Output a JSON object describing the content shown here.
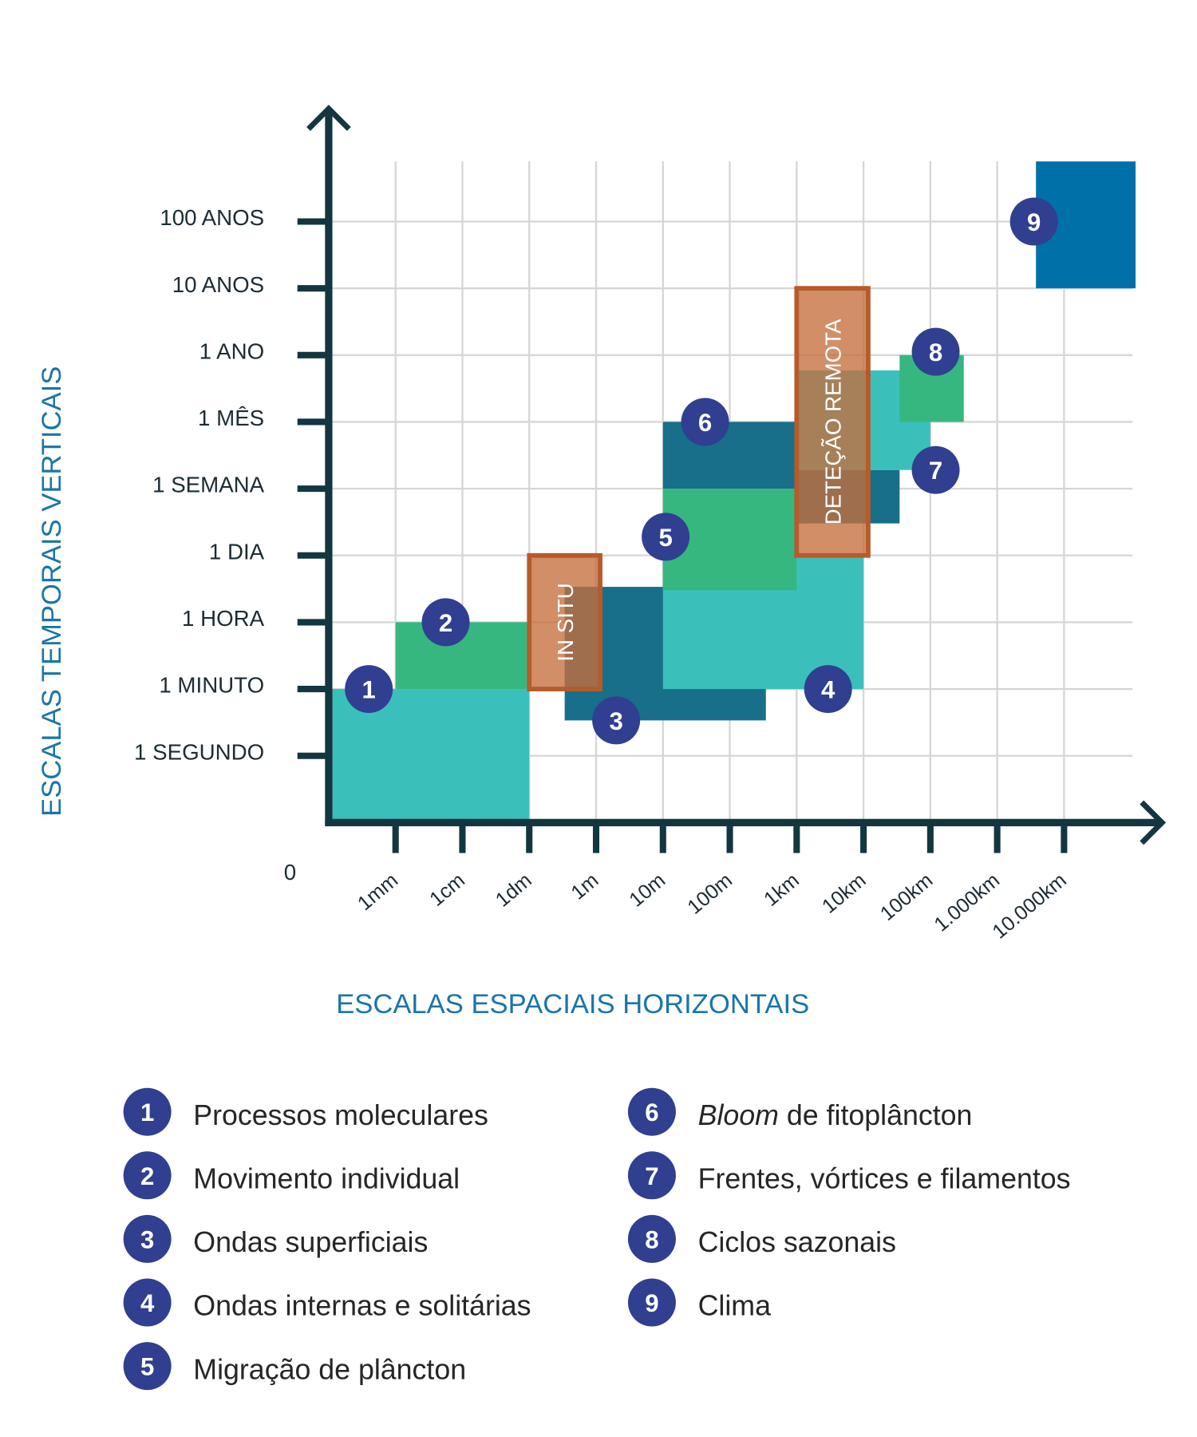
{
  "chart_data": {
    "type": "area-blocks",
    "xlabel": "ESCALAS ESPACIAIS HORIZONTAIS",
    "ylabel": "ESCALAS TEMPORAIS VERTICAIS",
    "x_scale": "log10 meters",
    "origin_label": "0",
    "x_ticks": [
      {
        "v": -3,
        "label": "1mm"
      },
      {
        "v": -2,
        "label": "1cm"
      },
      {
        "v": -1,
        "label": "1dm"
      },
      {
        "v": 0,
        "label": "1m"
      },
      {
        "v": 1,
        "label": "10m"
      },
      {
        "v": 2,
        "label": "100m"
      },
      {
        "v": 3,
        "label": "1km"
      },
      {
        "v": 4,
        "label": "10km"
      },
      {
        "v": 5,
        "label": "100km"
      },
      {
        "v": 6,
        "label": "1.000km"
      },
      {
        "v": 7,
        "label": "10.000km"
      }
    ],
    "y_ticks": [
      {
        "v": 0,
        "label": "1 SEGUNDO"
      },
      {
        "v": 1,
        "label": "1 MINUTO"
      },
      {
        "v": 2,
        "label": "1 HORA"
      },
      {
        "v": 3,
        "label": "1 DIA"
      },
      {
        "v": 4,
        "label": "1 SEMANA"
      },
      {
        "v": 5,
        "label": "1 MÊS"
      },
      {
        "v": 6,
        "label": "1 ANO"
      },
      {
        "v": 7,
        "label": "10 ANOS"
      },
      {
        "v": 8,
        "label": "100 ANOS"
      }
    ],
    "xlim": [
      -4,
      8
    ],
    "ylim": [
      -1,
      8.9
    ],
    "grid": true,
    "colors": {
      "teal": "#3bbfbb",
      "green": "#35b77f",
      "dark": "#176f8a",
      "blue": "#0070a8",
      "marker": "#303f8f",
      "method": "#b85a2a",
      "axis": "#143640"
    },
    "regions": [
      {
        "id": 3,
        "x": [
          -0.47,
          2.54
        ],
        "y": [
          0.53,
          2.53
        ],
        "color": "dark"
      },
      {
        "id": 1,
        "x": [
          -4,
          -1
        ],
        "y": [
          -1,
          1
        ],
        "color": "teal"
      },
      {
        "id": 2,
        "x": [
          -3,
          -1
        ],
        "y": [
          1,
          2
        ],
        "color": "green"
      },
      {
        "id": 4,
        "x": [
          1,
          4
        ],
        "y": [
          1,
          3
        ],
        "color": "teal"
      },
      {
        "id": 5,
        "x": [
          1,
          3
        ],
        "y": [
          2.48,
          4
        ],
        "color": "green"
      },
      {
        "id": 6,
        "x": [
          1,
          3
        ],
        "y": [
          4,
          5
        ],
        "color": "dark"
      },
      {
        "id": 6,
        "x": [
          3,
          4.54
        ],
        "y": [
          3.48,
          4.28
        ],
        "color": "dark"
      },
      {
        "id": 7,
        "x": [
          3,
          5
        ],
        "y": [
          4.28,
          5.77
        ],
        "color": "teal"
      },
      {
        "id": 8,
        "x": [
          4.54,
          5.5
        ],
        "y": [
          5,
          6
        ],
        "color": "green"
      },
      {
        "id": 9,
        "x": [
          6.58,
          8.07
        ],
        "y": [
          7,
          8.9
        ],
        "color": "blue"
      }
    ],
    "methods": [
      {
        "label": "IN SITU",
        "x": [
          -1,
          0.06
        ],
        "y": [
          1,
          3
        ]
      },
      {
        "label": "DETEÇÃO REMOTA",
        "x": [
          3,
          4.07
        ],
        "y": [
          3,
          7
        ]
      }
    ],
    "markers": [
      {
        "n": "1",
        "x": -3.4,
        "y": 1
      },
      {
        "n": "2",
        "x": -2.25,
        "y": 2
      },
      {
        "n": "3",
        "x": 0.3,
        "y": 0.53
      },
      {
        "n": "4",
        "x": 3.47,
        "y": 1
      },
      {
        "n": "5",
        "x": 1.04,
        "y": 3.28
      },
      {
        "n": "6",
        "x": 1.63,
        "y": 5
      },
      {
        "n": "7",
        "x": 5.08,
        "y": 4.28
      },
      {
        "n": "8",
        "x": 5.08,
        "y": 6.05
      },
      {
        "n": "9",
        "x": 6.55,
        "y": 8
      }
    ],
    "legend": [
      {
        "n": "1",
        "label": "Processos moleculares"
      },
      {
        "n": "2",
        "label": "Movimento individual"
      },
      {
        "n": "3",
        "label": "Ondas superficiais"
      },
      {
        "n": "4",
        "label": "Ondas internas e solitárias"
      },
      {
        "n": "5",
        "label": "Migração de plâncton"
      },
      {
        "n": "6",
        "italic": "Bloom",
        "label": " de fitoplâncton"
      },
      {
        "n": "7",
        "label": "Frentes, vórtices e filamentos"
      },
      {
        "n": "8",
        "label": "Ciclos sazonais"
      },
      {
        "n": "9",
        "label": "Clima"
      }
    ]
  }
}
